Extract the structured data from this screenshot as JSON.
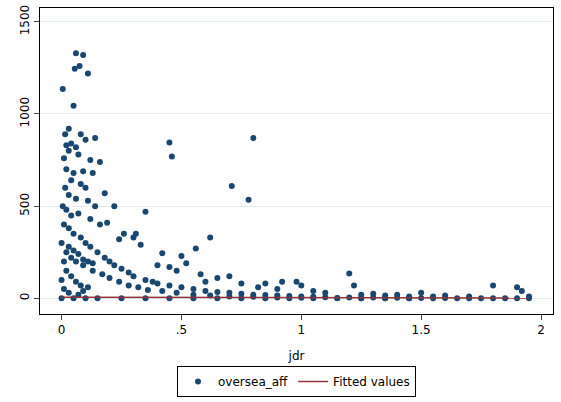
{
  "chart_data": {
    "type": "scatter",
    "x_label": "jdr",
    "xlim": [
      -0.09,
      2.05
    ],
    "ylim": [
      -85,
      1575
    ],
    "xticks": [
      0,
      {
        "value": 0.5,
        "label": ".5"
      },
      1,
      1.5,
      2
    ],
    "yticks": [
      0,
      500,
      1000,
      1500
    ],
    "grid": true,
    "legend": "bottom",
    "series": [
      {
        "name": "oversea_aff",
        "type": "scatter",
        "marker": "circle",
        "color": "#1a476f",
        "x": [
          0.005,
          0.06,
          0.09,
          0.055,
          0.075,
          0.11,
          0.05,
          0.015,
          0.03,
          0.08,
          0.1,
          0.14,
          0.02,
          0.04,
          0.03,
          0.06,
          0.12,
          0.16,
          0.45,
          0.46,
          0.8,
          0.71,
          0.78,
          0.01,
          0.07,
          0.02,
          0.05,
          0.09,
          0.13,
          0.04,
          0.08,
          0.1,
          0.18,
          0.015,
          0.03,
          0.06,
          0.11,
          0.14,
          0.22,
          0.35,
          0.005,
          0.02,
          0.04,
          0.07,
          0.12,
          0.16,
          0.19,
          0.26,
          0.3,
          0.31,
          0.24,
          0.33,
          0.42,
          0.5,
          0.56,
          0.62,
          0.52,
          0.45,
          0.4,
          0.48,
          0.58,
          0.65,
          0.7,
          0.6,
          0.75,
          0.85,
          0.92,
          0.98,
          0.82,
          0.9,
          1.0,
          1.05,
          1.2,
          1.22,
          1.1,
          1.3,
          1.4,
          1.5,
          1.6,
          1.7,
          1.8,
          1.9,
          1.92,
          1.95,
          1.55,
          1.35,
          1.25,
          1.45,
          0.01,
          0.03,
          0.05,
          0.08,
          0.1,
          0.12,
          0.15,
          0.18,
          0.2,
          0.22,
          0.25,
          0.28,
          0.3,
          0.35,
          0.38,
          0.4,
          0.45,
          0.5,
          0.55,
          0.6,
          0.65,
          0.7,
          0.75,
          0.8,
          0.85,
          0.9,
          0.95,
          1.0,
          1.05,
          1.1,
          1.2,
          1.3,
          1.4,
          1.5,
          1.6,
          1.7,
          1.8,
          1.9,
          0.02,
          0.04,
          0.06,
          0.09,
          0.13,
          0.17,
          0.2,
          0.24,
          0.28,
          0.32,
          0.36,
          0.42,
          0.48,
          0.55,
          0.62,
          0.7,
          0.8,
          0.9,
          1.0,
          1.15,
          1.25,
          1.35,
          1.45,
          1.55,
          1.65,
          1.75,
          1.85,
          1.95,
          0.0,
          0.05,
          0.1,
          0.15,
          0.25,
          0.35,
          0.45,
          0.55,
          0.65,
          0.75,
          0.85,
          0.95,
          1.05,
          1.15,
          1.25,
          1.35,
          1.45,
          0.0,
          0.02,
          0.04,
          0.06,
          0.08,
          0.01,
          0.03,
          0.07,
          0.09,
          0.11,
          0.0,
          0.01,
          0.03,
          0.05,
          0.07,
          0.09,
          0.11,
          0.13
        ],
        "values": [
          1135,
          1330,
          1320,
          1245,
          1260,
          1220,
          1045,
          890,
          920,
          890,
          860,
          870,
          830,
          840,
          800,
          820,
          750,
          740,
          845,
          770,
          870,
          610,
          535,
          760,
          780,
          700,
          680,
          690,
          680,
          640,
          620,
          600,
          570,
          600,
          560,
          540,
          530,
          500,
          500,
          470,
          500,
          480,
          450,
          460,
          430,
          400,
          410,
          350,
          330,
          350,
          320,
          290,
          245,
          230,
          270,
          330,
          190,
          170,
          180,
          150,
          130,
          110,
          120,
          90,
          80,
          80,
          90,
          90,
          60,
          50,
          70,
          40,
          135,
          70,
          30,
          25,
          20,
          30,
          15,
          10,
          70,
          60,
          40,
          10,
          10,
          15,
          20,
          10,
          400,
          380,
          350,
          330,
          300,
          280,
          250,
          220,
          200,
          180,
          160,
          140,
          120,
          100,
          90,
          80,
          70,
          60,
          50,
          40,
          35,
          30,
          25,
          20,
          18,
          15,
          12,
          10,
          8,
          6,
          5,
          4,
          3,
          2,
          2,
          1,
          1,
          1,
          250,
          220,
          200,
          180,
          150,
          130,
          110,
          90,
          70,
          60,
          45,
          40,
          30,
          20,
          15,
          10,
          8,
          5,
          3,
          2,
          1,
          1,
          1,
          0,
          0,
          0,
          0,
          0,
          0,
          0,
          0,
          0,
          0,
          0,
          0,
          0,
          0,
          0,
          0,
          0,
          0,
          0,
          0,
          0,
          0,
          100,
          150,
          120,
          90,
          70,
          50,
          30,
          20,
          40,
          60,
          300,
          200,
          280,
          260,
          240,
          210,
          200,
          190
        ]
      },
      {
        "name": "Fitted values",
        "type": "line",
        "line_style": "solid",
        "color": "#90353b",
        "x": [
          0,
          1.95
        ],
        "values": [
          6,
          2
        ]
      }
    ]
  }
}
